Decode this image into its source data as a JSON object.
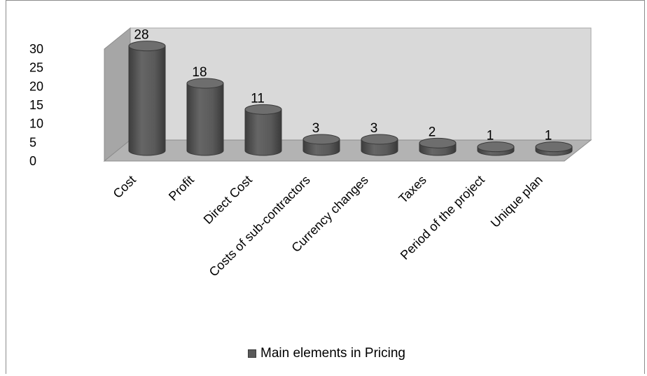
{
  "chart_data": {
    "type": "bar",
    "categories": [
      "Cost",
      "Profit",
      "Direct Cost",
      "Costs of sub-contractors",
      "Currency changes",
      "Taxes",
      "Period of the project",
      "Unique plan"
    ],
    "series": [
      {
        "name": "Main elements in Pricing",
        "values": [
          28,
          18,
          11,
          3,
          3,
          2,
          1,
          1
        ]
      }
    ],
    "yticks": [
      "0",
      "5",
      "10",
      "15",
      "20",
      "25",
      "30"
    ],
    "ylim": [
      0,
      30
    ],
    "title": "",
    "xlabel": "",
    "ylabel": "",
    "legend_position": "bottom",
    "bar_color": "#595959",
    "wall_color": "#d9d9d9"
  },
  "legend": {
    "label": "Main elements in Pricing"
  }
}
